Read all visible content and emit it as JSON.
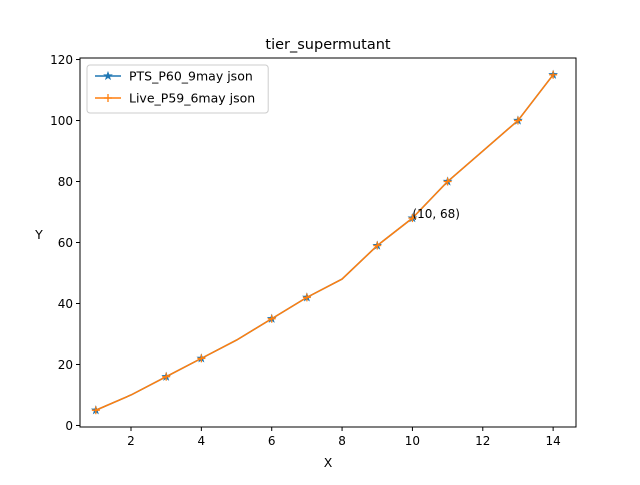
{
  "chart_data": {
    "type": "line",
    "title": "tier_supermutant",
    "xlabel": "X",
    "ylabel": "Y",
    "xlim": [
      0.55,
      14.65
    ],
    "ylim": [
      -0.5,
      120.5
    ],
    "xticks": [
      2,
      4,
      6,
      8,
      10,
      12,
      14
    ],
    "yticks": [
      0,
      20,
      40,
      60,
      80,
      100,
      120
    ],
    "grid": false,
    "legend_position": "top-left",
    "series": [
      {
        "name": "PTS_P60_9may json",
        "color": "#1f77b4",
        "marker": "star",
        "x": [
          1,
          2,
          3,
          4,
          5,
          6,
          7,
          8,
          9,
          10,
          11,
          12,
          13,
          14
        ],
        "y": [
          5,
          10,
          16,
          22,
          28,
          35,
          42,
          48,
          59,
          68,
          80,
          90,
          100,
          115
        ],
        "marker_indices": [
          0,
          2,
          3,
          5,
          6,
          8,
          9,
          10,
          12,
          13
        ]
      },
      {
        "name": "Live_P59_6may json",
        "color": "#ff7f0e",
        "marker": "plus",
        "x": [
          1,
          2,
          3,
          4,
          5,
          6,
          7,
          8,
          9,
          10,
          11,
          12,
          13,
          14
        ],
        "y": [
          5,
          10,
          16,
          22,
          28,
          35,
          42,
          48,
          59,
          68,
          80,
          90,
          100,
          115
        ],
        "marker_indices": [
          0,
          2,
          3,
          5,
          6,
          8,
          9,
          10,
          12,
          13
        ]
      }
    ],
    "annotations": [
      {
        "text": "(10, 68)",
        "x": 10,
        "y": 68
      }
    ]
  }
}
